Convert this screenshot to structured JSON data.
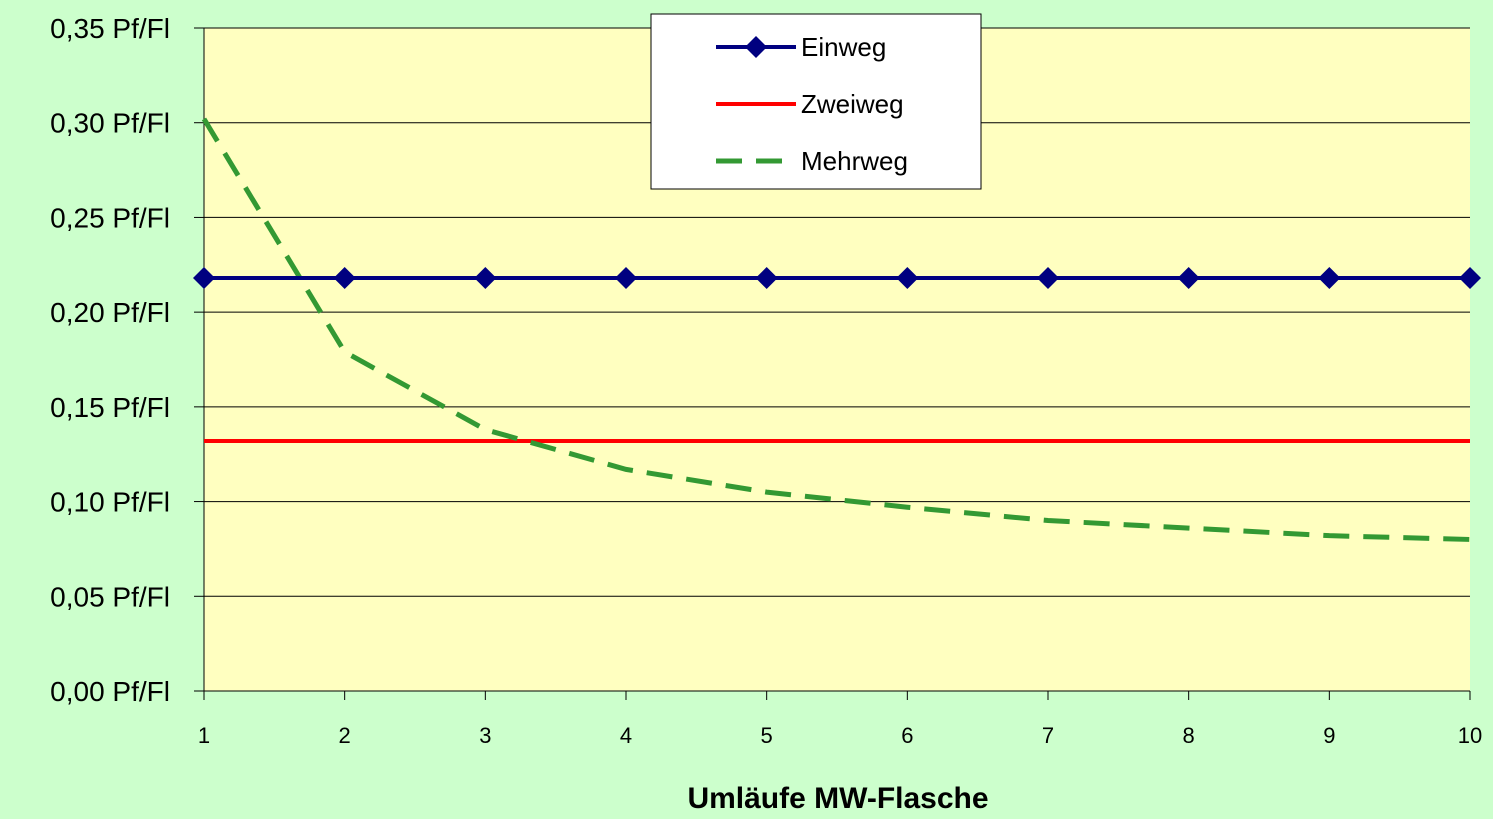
{
  "colors": {
    "page_background": "#ccffcc",
    "plot_background": "#ffffc0",
    "einweg": "#000080",
    "zweiweg": "#ff0000",
    "mehrweg": "#339933",
    "gridline": "#000000"
  },
  "chart_data": {
    "type": "line",
    "title": "",
    "xlabel": "Umläufe MW-Flasche",
    "ylabel": "",
    "x": [
      1,
      2,
      3,
      4,
      5,
      6,
      7,
      8,
      9,
      10
    ],
    "x_tick_labels": [
      "1",
      "2",
      "3",
      "4",
      "5",
      "6",
      "7",
      "8",
      "9",
      "10"
    ],
    "ylim": [
      0,
      0.35
    ],
    "y_ticks": [
      0,
      0.05,
      0.1,
      0.15,
      0.2,
      0.25,
      0.3,
      0.35
    ],
    "y_tick_labels": [
      "0,00 Pf/Fl",
      "0,05 Pf/Fl",
      "0,10 Pf/Fl",
      "0,15 Pf/Fl",
      "0,20 Pf/Fl",
      "0,25 Pf/Fl",
      "0,30 Pf/Fl",
      "0,35 Pf/Fl"
    ],
    "grid": "horizontal",
    "legend_position": "top-center",
    "series": [
      {
        "name": "Einweg",
        "style": "solid-diamond-markers",
        "color": "#000080",
        "values": [
          0.218,
          0.218,
          0.218,
          0.218,
          0.218,
          0.218,
          0.218,
          0.218,
          0.218,
          0.218
        ]
      },
      {
        "name": "Zweiweg",
        "style": "solid",
        "color": "#ff0000",
        "values": [
          0.132,
          0.132,
          0.132,
          0.132,
          0.132,
          0.132,
          0.132,
          0.132,
          0.132,
          0.132
        ]
      },
      {
        "name": "Mehrweg",
        "style": "dashed",
        "color": "#339933",
        "values": [
          0.302,
          0.179,
          0.138,
          0.117,
          0.105,
          0.097,
          0.09,
          0.086,
          0.082,
          0.08
        ]
      }
    ]
  }
}
